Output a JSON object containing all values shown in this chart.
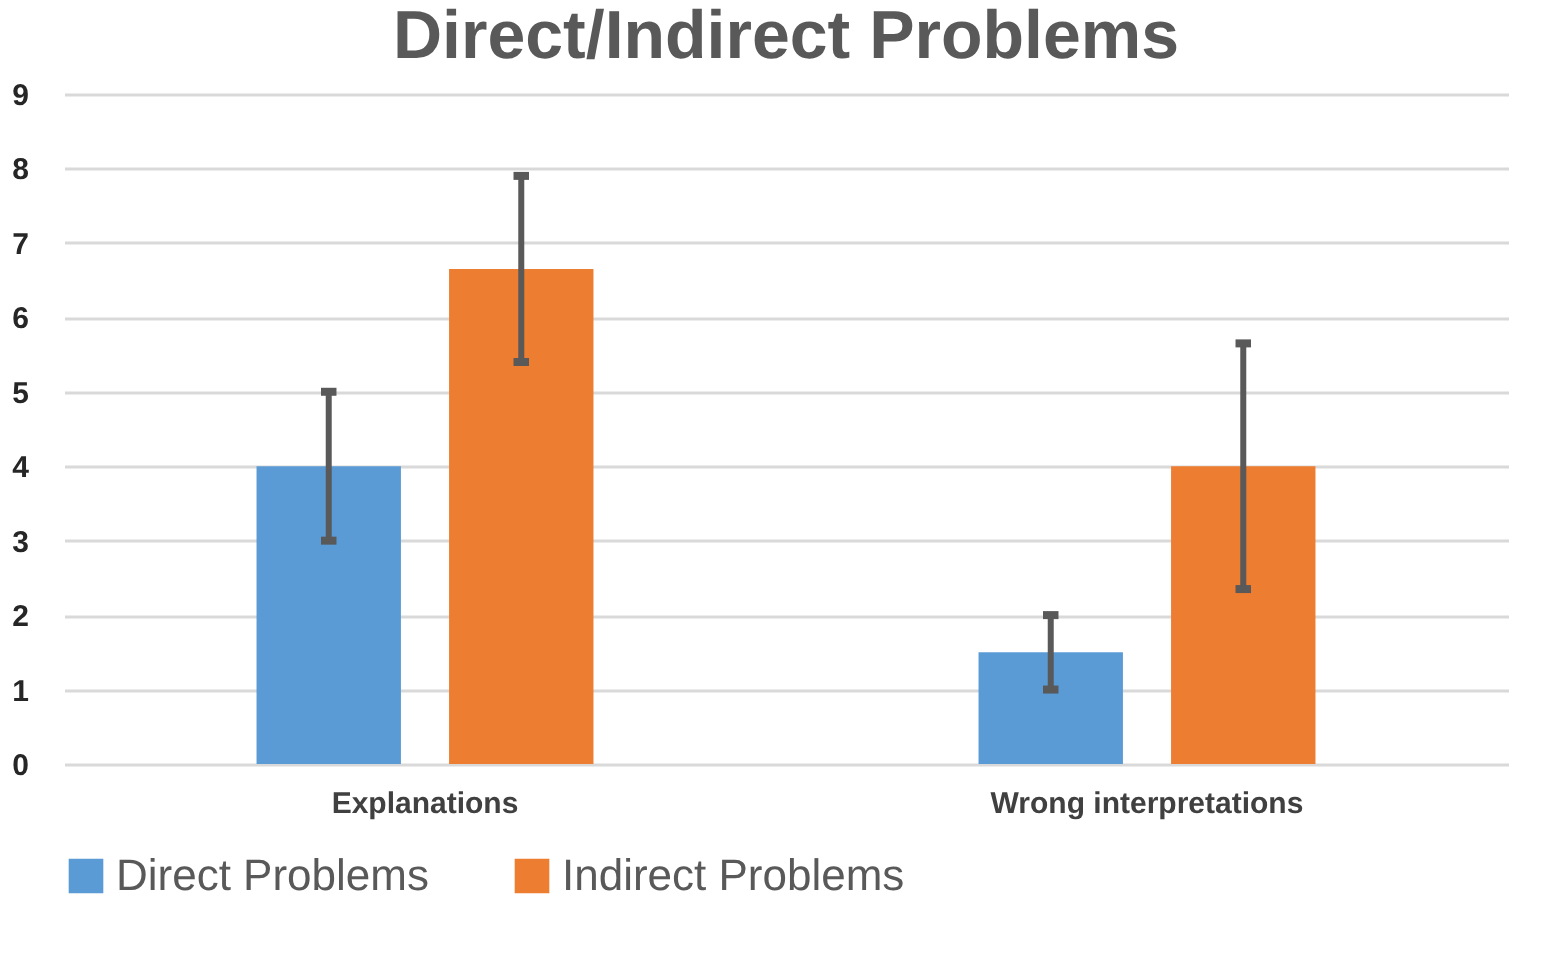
{
  "chart_data": {
    "type": "bar",
    "title": "Direct/Indirect Problems",
    "categories": [
      "Explanations",
      "Wrong interpretations"
    ],
    "series": [
      {
        "name": "Direct Problems",
        "color": "#5b9bd5",
        "values": [
          4,
          1.5
        ],
        "errors": [
          [
            3,
            5
          ],
          [
            1,
            2
          ]
        ]
      },
      {
        "name": "Indirect Problems",
        "color": "#ed7d31",
        "values": [
          6.65,
          4
        ],
        "errors": [
          [
            5.4,
            7.9
          ],
          [
            2.35,
            5.65
          ]
        ]
      }
    ],
    "ylim": [
      0,
      9
    ],
    "yticks": [
      0,
      1,
      2,
      3,
      4,
      5,
      6,
      7,
      8,
      9
    ],
    "grid": "y",
    "legend": "bottom"
  }
}
